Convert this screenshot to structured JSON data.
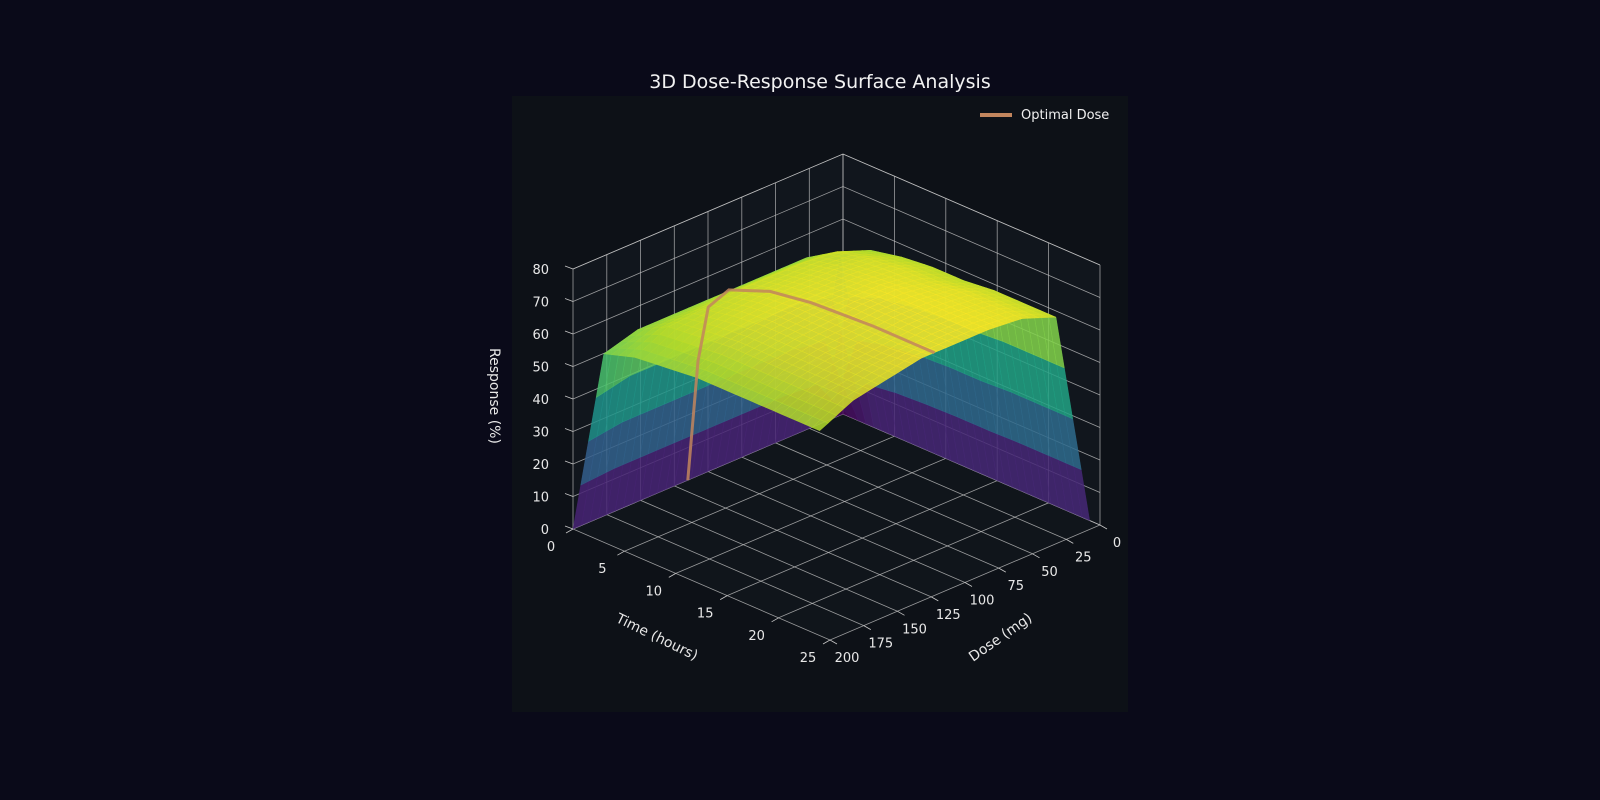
{
  "chart_data": {
    "type": "surface3d",
    "title": "3D Dose-Response Surface Analysis",
    "xlabel": "Dose (mg)",
    "ylabel": "Time (hours)",
    "zlabel": "Response (%)",
    "xlim": [
      0,
      200
    ],
    "ylim": [
      0,
      25
    ],
    "zlim": [
      0,
      80
    ],
    "x_ticks": [
      0,
      25,
      50,
      75,
      100,
      125,
      150,
      175,
      200
    ],
    "y_ticks": [
      0,
      5,
      10,
      15,
      20,
      25
    ],
    "z_ticks": [
      0,
      10,
      20,
      30,
      40,
      50,
      60,
      70,
      80
    ],
    "colormap": "viridis",
    "grid": true,
    "legend_position": "top-right",
    "surface": {
      "dose": [
        0,
        25,
        50,
        75,
        100,
        125,
        150,
        175,
        200
      ],
      "time": [
        0,
        3,
        6,
        9,
        12,
        15,
        18,
        21,
        24
      ],
      "response": [
        [
          0,
          0,
          0,
          0,
          0,
          0,
          0,
          0,
          0
        ],
        [
          0,
          58,
          61,
          61,
          61,
          61,
          61,
          61,
          58
        ],
        [
          0,
          63,
          67,
          68,
          68,
          68,
          67,
          66,
          61
        ],
        [
          0,
          65,
          69,
          70,
          70,
          70,
          69,
          67,
          62
        ],
        [
          0,
          66,
          70,
          71,
          71,
          71,
          70,
          68,
          63
        ],
        [
          0,
          66,
          70,
          72,
          72,
          71,
          70,
          68,
          63
        ],
        [
          0,
          67,
          71,
          72,
          72,
          71,
          70,
          68,
          63
        ],
        [
          0,
          67,
          71,
          72,
          72,
          71,
          70,
          68,
          63
        ],
        [
          0,
          67,
          71,
          72,
          72,
          72,
          70,
          68,
          63
        ]
      ]
    },
    "series": [
      {
        "name": "Optimal Dose",
        "color": "#c2855d",
        "points": [
          {
            "dose": 115,
            "time": 0,
            "response": 0
          },
          {
            "dose": 115,
            "time": 1,
            "response": 38
          },
          {
            "dose": 115,
            "time": 2,
            "response": 56
          },
          {
            "dose": 115,
            "time": 4,
            "response": 64
          },
          {
            "dose": 115,
            "time": 8,
            "response": 69
          },
          {
            "dose": 115,
            "time": 12,
            "response": 71
          },
          {
            "dose": 115,
            "time": 18,
            "response": 72
          },
          {
            "dose": 115,
            "time": 24,
            "response": 72
          }
        ]
      }
    ]
  },
  "colors": {
    "figure_background": "#0a0a19",
    "axes_background": "#0d1117",
    "grid": "#c8c8c8",
    "text": "#e8e8e8"
  }
}
